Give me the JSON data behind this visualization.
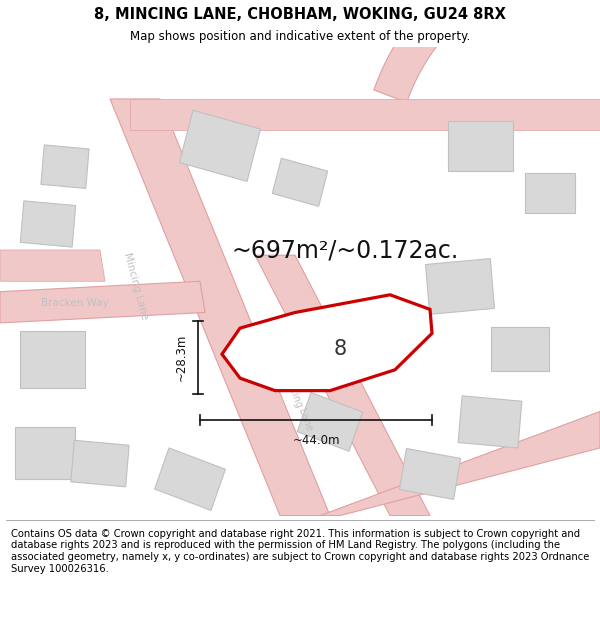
{
  "title_line1": "8, MINCING LANE, CHOBHAM, WOKING, GU24 8RX",
  "title_line2": "Map shows position and indicative extent of the property.",
  "footer_text": "Contains OS data © Crown copyright and database right 2021. This information is subject to Crown copyright and database rights 2023 and is reproduced with the permission of HM Land Registry. The polygons (including the associated geometry, namely x, y co-ordinates) are subject to Crown copyright and database rights 2023 Ordnance Survey 100026316.",
  "area_text": "~697m²/~0.172ac.",
  "property_label": "8",
  "dim_width": "~44.0m",
  "dim_height": "~28.3m",
  "bg_color": "#ffffff",
  "building_fill": "#d8d8d8",
  "building_stroke": "#c0c0c0",
  "property_fill": "#ffffff",
  "property_stroke": "#cc0000",
  "title_fontsize": 10.5,
  "subtitle_fontsize": 8.5,
  "footer_fontsize": 7.2,
  "area_fontsize": 17,
  "label_fontsize": 15,
  "dim_fontsize": 8.5,
  "road_label_fontsize": 7.5,
  "road_color": "#f0c8c8",
  "road_edge": "#e0a0a0",
  "road_label_color": "#c0c0c0",
  "dim_color": "#111111",
  "map_title_area": 0.075,
  "map_footer_area": 0.175
}
